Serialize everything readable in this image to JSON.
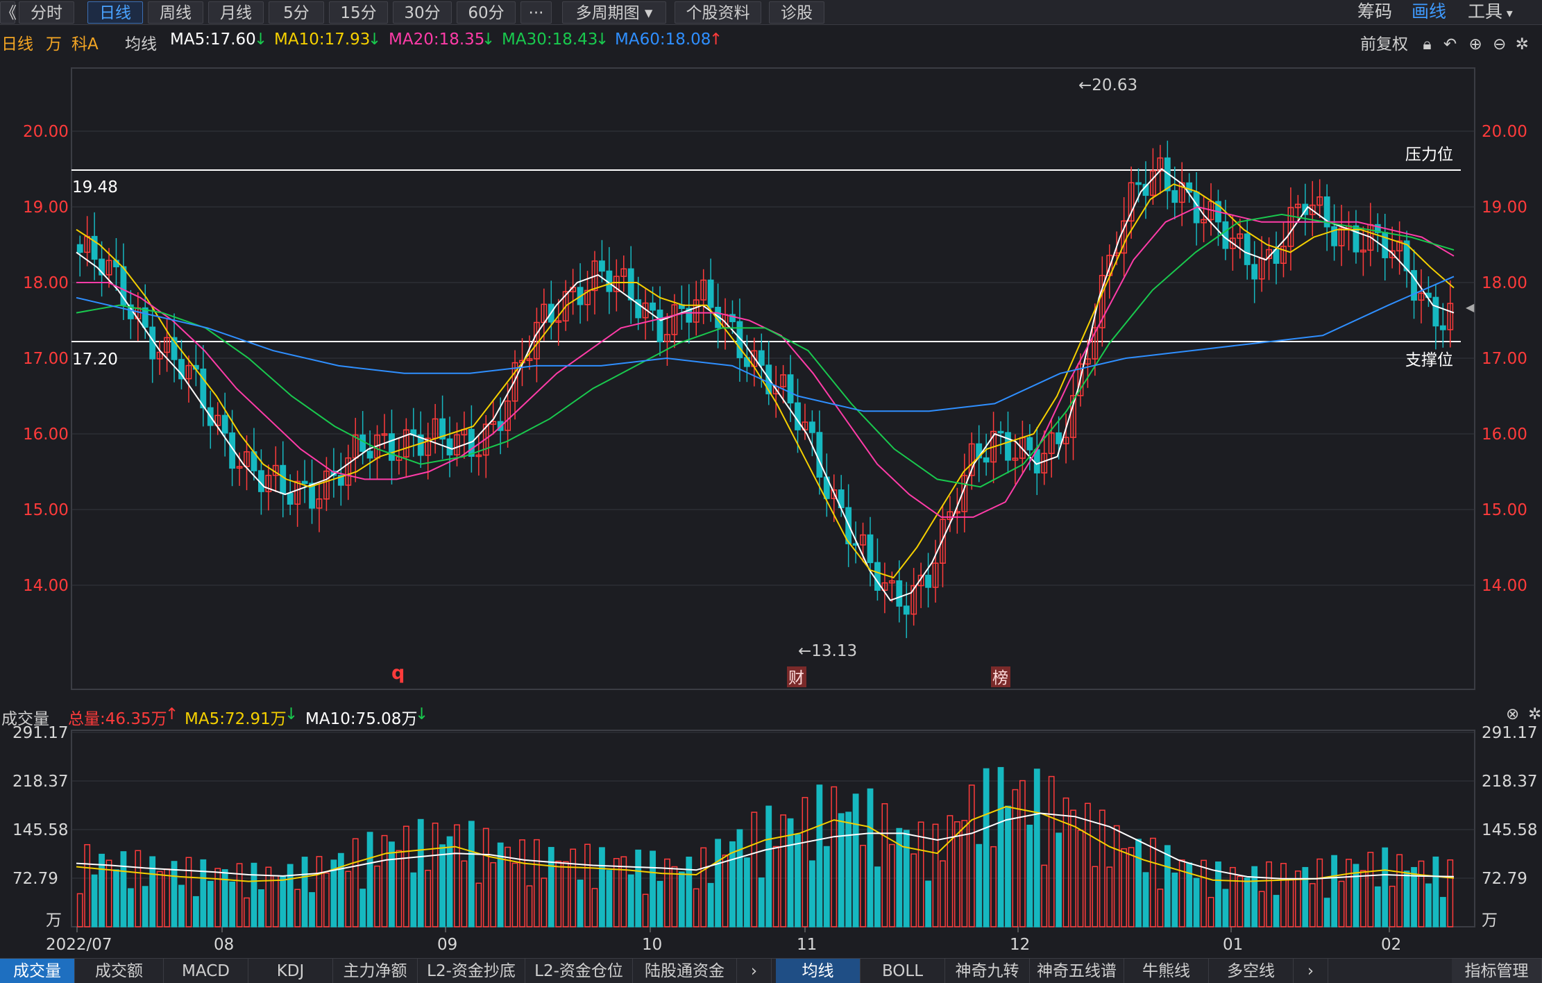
{
  "toolbar": {
    "back_icon": "double-left-chevron-icon",
    "tabs": [
      "分时",
      "日线",
      "周线",
      "月线",
      "5分",
      "15分",
      "30分",
      "60分",
      "···",
      "多周期图",
      "个股资料",
      "诊股"
    ],
    "active_tab": "日线",
    "right_items": [
      "筹码",
      "画线",
      "工具"
    ]
  },
  "ma_legend": {
    "period": "日线",
    "unit": "万",
    "name": "科A",
    "label": "均线",
    "ma5": "MA5:17.60",
    "ma10": "MA10:17.93",
    "ma20": "MA20:18.35",
    "ma30": "MA30:18.43",
    "ma60": "MA60:18.08",
    "adjust": "前复权"
  },
  "colors": {
    "up": "#ff3b3b",
    "down": "#16b8c0",
    "ma5": "#ffffff",
    "ma10": "#f5d000",
    "ma20": "#ff3ca8",
    "ma30": "#19c94e",
    "ma60": "#2f8fff",
    "price_axis": "#ff3b3b",
    "background": "#1c1d22",
    "grid": "#34363d"
  },
  "vol_legend": {
    "label": "成交量",
    "total": "总量:46.35万",
    "ma5": "MA5:72.91万",
    "ma10": "MA10:75.08万"
  },
  "bottom_tabs": {
    "left": [
      "成交量",
      "成交额",
      "MACD",
      "KDJ",
      "主力净额",
      "L2-资金抄底",
      "L2-资金仓位",
      "陆股通资金"
    ],
    "right": [
      "均线",
      "BOLL",
      "神奇九转",
      "神奇五线谱",
      "牛熊线",
      "多空线"
    ],
    "manage": "指标管理"
  },
  "chart_data": {
    "type": "candlestick",
    "price_ylim": [
      13.0,
      20.9
    ],
    "price_ticks": [
      "20.00",
      "19.00",
      "18.00",
      "17.00",
      "16.00",
      "15.00",
      "14.00"
    ],
    "resistance": {
      "value": 19.48,
      "label": "19.48",
      "name": "压力位"
    },
    "support": {
      "value": 17.2,
      "label": "17.20",
      "name": "支撑位"
    },
    "high_mark": {
      "value": "←20.63"
    },
    "low_mark": {
      "value": "←13.13"
    },
    "event_labels": [
      "q",
      "财",
      "榜"
    ],
    "x_labels": [
      "2022/07",
      "08",
      "09",
      "10",
      "11",
      "12",
      "01",
      "02"
    ],
    "ma_series": [
      {
        "name": "MA5",
        "values": [
          18.4,
          18.2,
          17.9,
          17.5,
          17.1,
          16.8,
          16.4,
          16.0,
          15.6,
          15.3,
          15.2,
          15.3,
          15.4,
          15.6,
          15.8,
          15.9,
          16.0,
          15.9,
          15.8,
          15.9,
          16.2,
          16.7,
          17.3,
          17.7,
          18.0,
          18.1,
          17.9,
          17.7,
          17.5,
          17.6,
          17.7,
          17.5,
          17.2,
          16.8,
          16.4,
          16.0,
          15.4,
          14.8,
          14.2,
          13.8,
          13.9,
          14.3,
          14.9,
          15.6,
          16.0,
          15.9,
          15.6,
          15.7,
          16.6,
          17.8,
          18.6,
          19.2,
          19.5,
          19.3,
          18.9,
          18.6,
          18.4,
          18.3,
          18.6,
          19.0,
          18.8,
          18.7,
          18.6,
          18.4,
          18.1,
          17.7,
          17.6
        ]
      },
      {
        "name": "MA10",
        "values": [
          18.7,
          18.5,
          18.2,
          17.8,
          17.3,
          16.9,
          16.5,
          16.0,
          15.6,
          15.4,
          15.3,
          15.4,
          15.5,
          15.7,
          15.8,
          15.9,
          16.0,
          16.1,
          16.5,
          16.9,
          17.3,
          17.7,
          17.9,
          18.0,
          18.0,
          17.8,
          17.7,
          17.7,
          17.3,
          16.9,
          16.4,
          15.8,
          15.2,
          14.6,
          14.2,
          14.1,
          14.5,
          15.0,
          15.5,
          15.8,
          15.9,
          16.0,
          16.5,
          17.2,
          17.9,
          18.6,
          19.1,
          19.3,
          19.2,
          19.0,
          18.7,
          18.5,
          18.4,
          18.6,
          18.7,
          18.7,
          18.6,
          18.5,
          18.2,
          17.93
        ]
      },
      {
        "name": "MA20",
        "values": [
          18.0,
          18.0,
          17.8,
          17.5,
          17.1,
          16.6,
          16.2,
          15.8,
          15.5,
          15.4,
          15.4,
          15.5,
          15.7,
          16.0,
          16.4,
          16.8,
          17.1,
          17.4,
          17.5,
          17.6,
          17.6,
          17.5,
          17.3,
          16.8,
          16.2,
          15.6,
          15.2,
          14.9,
          14.9,
          15.1,
          15.8,
          16.7,
          17.5,
          18.3,
          18.8,
          19.0,
          18.9,
          18.8,
          18.8,
          18.8,
          18.8,
          18.7,
          18.6,
          18.35
        ]
      },
      {
        "name": "MA30",
        "values": [
          17.6,
          17.7,
          17.6,
          17.4,
          17.0,
          16.5,
          16.1,
          15.8,
          15.6,
          15.7,
          15.9,
          16.2,
          16.6,
          16.9,
          17.2,
          17.4,
          17.4,
          17.1,
          16.4,
          15.8,
          15.4,
          15.3,
          15.6,
          16.3,
          17.2,
          17.9,
          18.4,
          18.8,
          18.9,
          18.8,
          18.7,
          18.6,
          18.43
        ]
      },
      {
        "name": "MA60",
        "values": [
          17.8,
          17.6,
          17.4,
          17.1,
          16.9,
          16.8,
          16.8,
          16.9,
          16.9,
          17.0,
          16.9,
          16.5,
          16.3,
          16.3,
          16.4,
          16.8,
          17.0,
          17.1,
          17.2,
          17.3,
          17.7,
          18.08
        ]
      }
    ],
    "volume_ylim": [
      0,
      291.17
    ],
    "volume_ticks": [
      "291.17",
      "218.37",
      "145.58",
      "72.79",
      "万"
    ],
    "volume_ma5": [
      90,
      85,
      80,
      75,
      72,
      68,
      70,
      78,
      95,
      110,
      115,
      120,
      105,
      95,
      90,
      88,
      85,
      80,
      78,
      110,
      130,
      140,
      160,
      150,
      120,
      110,
      160,
      180,
      170,
      150,
      120,
      100,
      85,
      70,
      68,
      70,
      72,
      80,
      85,
      78,
      72.91
    ],
    "volume_ma10": [
      95,
      92,
      88,
      85,
      82,
      78,
      76,
      80,
      90,
      100,
      105,
      110,
      108,
      100,
      96,
      92,
      90,
      88,
      85,
      100,
      115,
      125,
      135,
      140,
      140,
      130,
      140,
      160,
      170,
      165,
      150,
      125,
      100,
      85,
      75,
      72,
      72,
      75,
      78,
      76,
      75.08
    ]
  }
}
